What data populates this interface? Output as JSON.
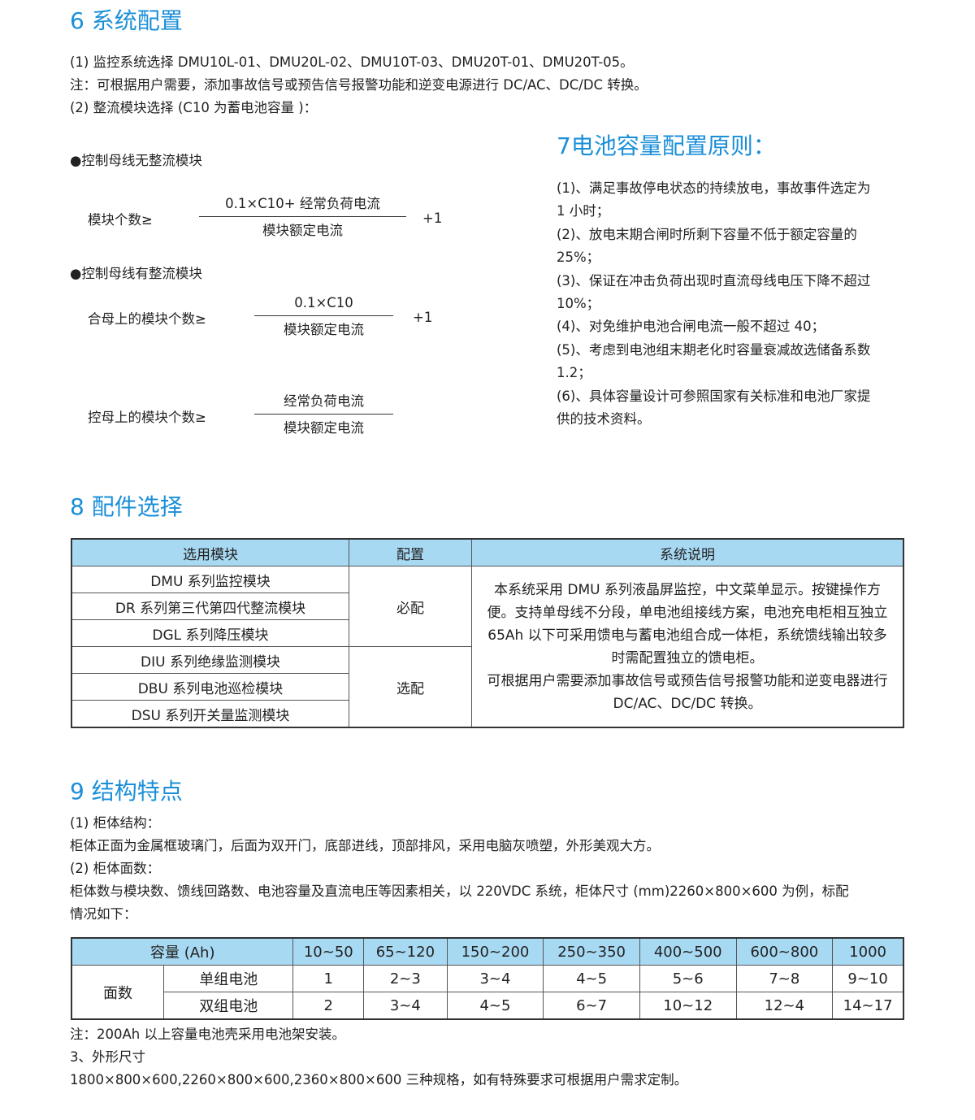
{
  "s6": {
    "title": "6 系统配置",
    "lines": [
      "(1) 监控系统选择 DMU10L-01、DMU20L-02、DMU10T-03、DMU20T-01、DMU20T-05。",
      "注：可根据用户需要，添加事故信号或预告信号报警功能和逆变电源进行 DC/AC、DC/DC 转换。",
      "(2) 整流模块选择 (C10 为蓄电池容量 )："
    ],
    "case1": "●控制母线无整流模块",
    "f1": {
      "label": "模块个数≥",
      "num": "0.1×C10+ 经常负荷电流",
      "den": "模块额定电流",
      "plus": "+1"
    },
    "case2": "●控制母线有整流模块",
    "f2": {
      "label": "合母上的模块个数≥",
      "num": "0.1×C10",
      "den": "模块额定电流",
      "plus": "+1"
    },
    "f3": {
      "label": "控母上的模块个数≥",
      "num": "经常负荷电流",
      "den": "模块额定电流"
    }
  },
  "s7": {
    "title": "7电池容量配置原则：",
    "lines": [
      "(1)、满足事故停电状态的持续放电，事故事件选定为",
      "1 小时；",
      "(2)、放电末期合闸时所剩下容量不低于额定容量的",
      "25%；",
      "(3)、保证在冲击负荷出现时直流母线电压下降不超过",
      "10%；",
      "(4)、对免维护电池合闸电流一般不超过 40；",
      "(5)、考虑到电池组末期老化时容量衰减故选储备系数",
      "1.2；",
      "(6)、具体容量设计可参照国家有关标准和电池厂家提",
      "供的技术资料。"
    ]
  },
  "s8": {
    "title": "8 配件选择",
    "headers": [
      "选用模块",
      "配置",
      "系统说明"
    ],
    "modules": [
      "DMU 系列监控模块",
      "DR 系列第三代第四代整流模块",
      "DGL 系列降压模块",
      "DIU 系列绝缘监测模块",
      "DBU 系列电池巡检模块",
      "DSU 系列开关量监测模块"
    ],
    "config": [
      "必配",
      "选配"
    ],
    "desc": [
      "本系统采用 DMU 系列液晶屏监控，中文菜单显示。按键操作方",
      "便。支持单母线不分段，单电池组接线方案，电池充电柜相互独立",
      "65Ah 以下可采用馈电与蓄电池组合成一体柜，系统馈线输出较多",
      "时需配置独立的馈电柜。",
      "可根据用户需要添加事故信号或预告信号报警功能和逆变电器进行",
      "DC/AC、DC/DC 转换。"
    ]
  },
  "s9": {
    "title": "9 结构特点",
    "lines": [
      "(1) 柜体结构：",
      "柜体正面为金属框玻璃门，后面为双开门，底部进线，顶部排风，采用电脑灰喷塑，外形美观大方。",
      "(2) 柜体面数：",
      "柜体数与模块数、馈线回路数、电池容量及直流电压等因素相关，以 220VDC 系统，柜体尺寸 (mm)2260×800×600 为例，标配",
      "情况如下："
    ],
    "table": {
      "header": "容量 (Ah)",
      "cols": [
        "10~50",
        "65~120",
        "150~200",
        "250~350",
        "400~500",
        "600~800",
        "1000"
      ],
      "group": "面数",
      "rows": [
        {
          "label": "单组电池",
          "values": [
            "1",
            "2~3",
            "3~4",
            "4~5",
            "5~6",
            "7~8",
            "9~10"
          ]
        },
        {
          "label": "双组电池",
          "values": [
            "2",
            "3~4",
            "4~5",
            "6~7",
            "10~12",
            "12~4",
            "14~17"
          ]
        }
      ]
    },
    "after": [
      "注：200Ah 以上容量电池壳采用电池架安装。",
      "3、外形尺寸",
      "1800×800×600,2260×800×600,2360×800×600 三种规格，如有特殊要求可根据用户需求定制。"
    ]
  },
  "colors": {
    "heading": "#1a8fd8",
    "table_header": "#a8d9f3"
  }
}
